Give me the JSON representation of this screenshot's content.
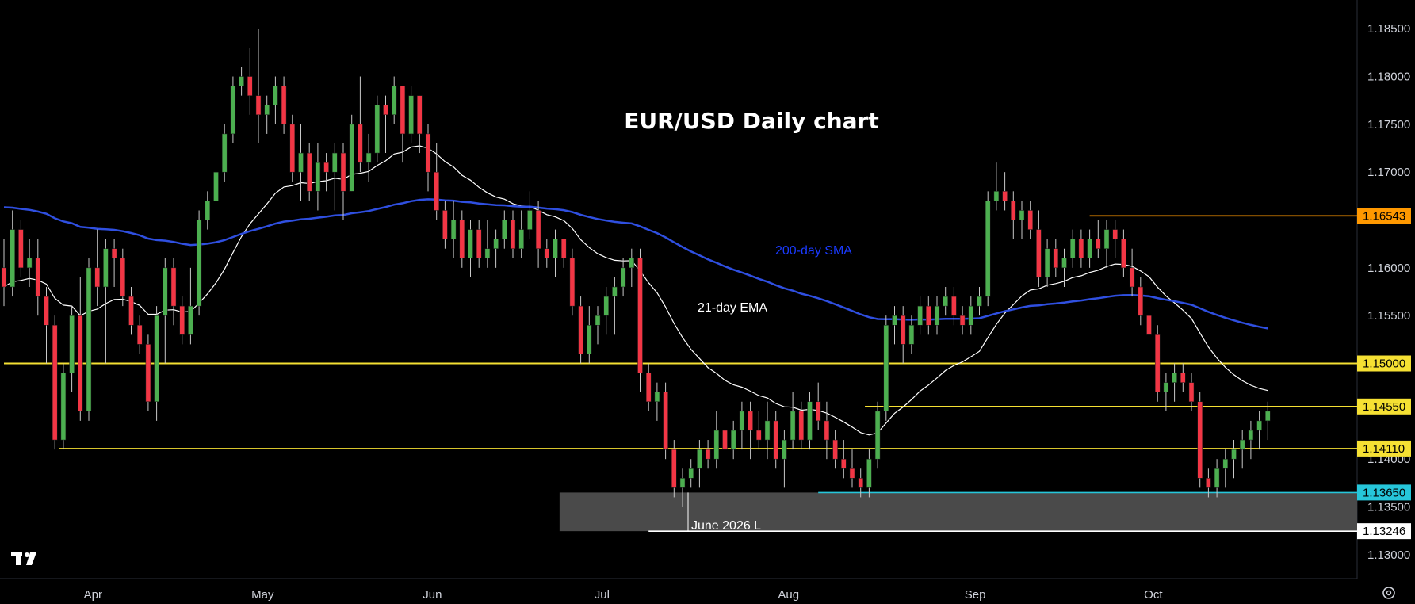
{
  "chart_data": {
    "type": "candlestick",
    "title": "EUR/USD Daily chart",
    "ylim": [
      1.1275,
      1.188
    ],
    "y_ticks": [
      "1.18500",
      "1.18000",
      "1.17500",
      "1.17000",
      "1.16000",
      "1.15500",
      "1.14000",
      "1.13500",
      "1.13000"
    ],
    "y_tick_values": [
      1.185,
      1.18,
      1.175,
      1.17,
      1.16,
      1.155,
      1.14,
      1.135,
      1.13
    ],
    "x_labels": [
      "Apr",
      "May",
      "Jun",
      "Jul",
      "Aug",
      "Sep",
      "Oct"
    ],
    "x_label_bar_index": [
      10.5,
      30.5,
      50.5,
      70.5,
      92.5,
      114.5,
      135.5
    ],
    "bar_count": 154,
    "up_color": "#4caf50",
    "down_color": "#f23645",
    "levels": [
      {
        "price": 1.15,
        "label": "1.15000",
        "color": "#f5e033",
        "badge_bg": "#f5e033",
        "start_bar": 0
      },
      {
        "price": 1.1455,
        "label": "1.14550",
        "color": "#f5e033",
        "badge_bg": "#f5e033",
        "start_bar": 101.5
      },
      {
        "price": 1.1411,
        "label": "1.14110",
        "color": "#f5e033",
        "badge_bg": "#f5e033",
        "start_bar": 6.5
      },
      {
        "price": 1.16543,
        "label": "1.16543",
        "color": "#ff9800",
        "badge_bg": "#ff9800",
        "start_bar": 128
      },
      {
        "price": 1.1365,
        "label": "1.13650",
        "color": "#26c6da",
        "badge_bg": "#26c6da",
        "start_bar": 96
      },
      {
        "price": 1.13246,
        "label": "1.13246",
        "color": "#ffffff",
        "badge_bg": "#ffffff",
        "start_bar": 76
      }
    ],
    "zone": {
      "from": 1.1365,
      "to": 1.13246,
      "start_bar": 65.5,
      "color": "#4a4a4a"
    },
    "annotations": {
      "sma": {
        "text": "200-day SMA",
        "color": "#1a3aff"
      },
      "ema": {
        "text": "21-day EMA",
        "color": "#ffffff"
      },
      "low": {
        "text": "June 2026 L",
        "color": "#ffffff"
      }
    },
    "series": [
      {
        "name": "EUR/USD",
        "ohlc": [
          [
            1.16,
            1.163,
            1.156,
            1.158
          ],
          [
            1.158,
            1.166,
            1.157,
            1.164
          ],
          [
            1.164,
            1.165,
            1.159,
            1.16
          ],
          [
            1.16,
            1.163,
            1.158,
            1.161
          ],
          [
            1.161,
            1.163,
            1.155,
            1.157
          ],
          [
            1.157,
            1.158,
            1.15,
            1.154
          ],
          [
            1.154,
            1.155,
            1.141,
            1.142
          ],
          [
            1.142,
            1.15,
            1.141,
            1.149
          ],
          [
            1.149,
            1.156,
            1.147,
            1.155
          ],
          [
            1.155,
            1.159,
            1.144,
            1.145
          ],
          [
            1.145,
            1.161,
            1.144,
            1.16
          ],
          [
            1.16,
            1.164,
            1.156,
            1.158
          ],
          [
            1.158,
            1.163,
            1.15,
            1.162
          ],
          [
            1.162,
            1.163,
            1.158,
            1.161
          ],
          [
            1.161,
            1.162,
            1.156,
            1.157
          ],
          [
            1.157,
            1.158,
            1.153,
            1.154
          ],
          [
            1.154,
            1.155,
            1.151,
            1.152
          ],
          [
            1.152,
            1.153,
            1.145,
            1.146
          ],
          [
            1.146,
            1.156,
            1.144,
            1.155
          ],
          [
            1.155,
            1.161,
            1.15,
            1.16
          ],
          [
            1.16,
            1.161,
            1.154,
            1.156
          ],
          [
            1.156,
            1.157,
            1.152,
            1.153
          ],
          [
            1.153,
            1.16,
            1.152,
            1.156
          ],
          [
            1.156,
            1.166,
            1.155,
            1.165
          ],
          [
            1.165,
            1.168,
            1.164,
            1.167
          ],
          [
            1.167,
            1.171,
            1.166,
            1.17
          ],
          [
            1.17,
            1.175,
            1.169,
            1.174
          ],
          [
            1.174,
            1.18,
            1.173,
            1.179
          ],
          [
            1.179,
            1.181,
            1.178,
            1.18
          ],
          [
            1.18,
            1.183,
            1.176,
            1.178
          ],
          [
            1.178,
            1.185,
            1.173,
            1.176
          ],
          [
            1.176,
            1.178,
            1.174,
            1.177
          ],
          [
            1.177,
            1.18,
            1.175,
            1.179
          ],
          [
            1.179,
            1.18,
            1.174,
            1.175
          ],
          [
            1.175,
            1.176,
            1.169,
            1.17
          ],
          [
            1.17,
            1.175,
            1.167,
            1.172
          ],
          [
            1.172,
            1.173,
            1.167,
            1.168
          ],
          [
            1.168,
            1.173,
            1.166,
            1.171
          ],
          [
            1.171,
            1.172,
            1.168,
            1.17
          ],
          [
            1.17,
            1.173,
            1.166,
            1.172
          ],
          [
            1.172,
            1.173,
            1.165,
            1.168
          ],
          [
            1.168,
            1.176,
            1.168,
            1.175
          ],
          [
            1.175,
            1.18,
            1.17,
            1.171
          ],
          [
            1.171,
            1.174,
            1.169,
            1.172
          ],
          [
            1.172,
            1.178,
            1.171,
            1.177
          ],
          [
            1.177,
            1.178,
            1.172,
            1.176
          ],
          [
            1.176,
            1.18,
            1.175,
            1.179
          ],
          [
            1.179,
            1.179,
            1.171,
            1.174
          ],
          [
            1.174,
            1.179,
            1.173,
            1.178
          ],
          [
            1.178,
            1.178,
            1.172,
            1.174
          ],
          [
            1.174,
            1.175,
            1.168,
            1.17
          ],
          [
            1.17,
            1.173,
            1.165,
            1.166
          ],
          [
            1.166,
            1.167,
            1.162,
            1.163
          ],
          [
            1.163,
            1.167,
            1.161,
            1.165
          ],
          [
            1.165,
            1.166,
            1.16,
            1.161
          ],
          [
            1.161,
            1.165,
            1.159,
            1.164
          ],
          [
            1.164,
            1.165,
            1.16,
            1.161
          ],
          [
            1.161,
            1.165,
            1.16,
            1.162
          ],
          [
            1.162,
            1.164,
            1.16,
            1.163
          ],
          [
            1.163,
            1.166,
            1.162,
            1.165
          ],
          [
            1.165,
            1.166,
            1.161,
            1.162
          ],
          [
            1.162,
            1.166,
            1.161,
            1.164
          ],
          [
            1.164,
            1.168,
            1.163,
            1.166
          ],
          [
            1.166,
            1.167,
            1.16,
            1.162
          ],
          [
            1.162,
            1.163,
            1.16,
            1.161
          ],
          [
            1.161,
            1.164,
            1.159,
            1.163
          ],
          [
            1.163,
            1.163,
            1.16,
            1.161
          ],
          [
            1.161,
            1.162,
            1.155,
            1.156
          ],
          [
            1.156,
            1.157,
            1.15,
            1.151
          ],
          [
            1.151,
            1.156,
            1.15,
            1.154
          ],
          [
            1.154,
            1.156,
            1.152,
            1.155
          ],
          [
            1.155,
            1.158,
            1.153,
            1.157
          ],
          [
            1.157,
            1.159,
            1.153,
            1.158
          ],
          [
            1.158,
            1.161,
            1.157,
            1.16
          ],
          [
            1.16,
            1.162,
            1.158,
            1.161
          ],
          [
            1.161,
            1.162,
            1.147,
            1.149
          ],
          [
            1.149,
            1.15,
            1.145,
            1.146
          ],
          [
            1.146,
            1.148,
            1.144,
            1.147
          ],
          [
            1.147,
            1.148,
            1.14,
            1.141
          ],
          [
            1.141,
            1.142,
            1.136,
            1.137
          ],
          [
            1.137,
            1.139,
            1.135,
            1.138
          ],
          [
            1.138,
            1.14,
            1.137,
            1.139
          ],
          [
            1.139,
            1.142,
            1.137,
            1.141
          ],
          [
            1.141,
            1.142,
            1.139,
            1.14
          ],
          [
            1.14,
            1.145,
            1.139,
            1.143
          ],
          [
            1.143,
            1.148,
            1.137,
            1.141
          ],
          [
            1.141,
            1.144,
            1.14,
            1.143
          ],
          [
            1.143,
            1.146,
            1.141,
            1.145
          ],
          [
            1.145,
            1.146,
            1.14,
            1.143
          ],
          [
            1.143,
            1.145,
            1.141,
            1.142
          ],
          [
            1.142,
            1.146,
            1.14,
            1.144
          ],
          [
            1.144,
            1.145,
            1.139,
            1.14
          ],
          [
            1.14,
            1.143,
            1.137,
            1.142
          ],
          [
            1.142,
            1.147,
            1.141,
            1.145
          ],
          [
            1.145,
            1.146,
            1.141,
            1.142
          ],
          [
            1.142,
            1.147,
            1.141,
            1.146
          ],
          [
            1.146,
            1.148,
            1.143,
            1.144
          ],
          [
            1.144,
            1.146,
            1.14,
            1.142
          ],
          [
            1.142,
            1.143,
            1.139,
            1.14
          ],
          [
            1.14,
            1.142,
            1.138,
            1.139
          ],
          [
            1.139,
            1.141,
            1.137,
            1.138
          ],
          [
            1.138,
            1.139,
            1.136,
            1.137
          ],
          [
            1.137,
            1.141,
            1.136,
            1.14
          ],
          [
            1.14,
            1.146,
            1.139,
            1.145
          ],
          [
            1.145,
            1.155,
            1.144,
            1.154
          ],
          [
            1.154,
            1.156,
            1.152,
            1.155
          ],
          [
            1.155,
            1.156,
            1.15,
            1.152
          ],
          [
            1.152,
            1.155,
            1.151,
            1.154
          ],
          [
            1.154,
            1.157,
            1.153,
            1.156
          ],
          [
            1.156,
            1.157,
            1.153,
            1.154
          ],
          [
            1.154,
            1.157,
            1.153,
            1.156
          ],
          [
            1.156,
            1.158,
            1.155,
            1.157
          ],
          [
            1.157,
            1.158,
            1.154,
            1.155
          ],
          [
            1.155,
            1.156,
            1.153,
            1.154
          ],
          [
            1.154,
            1.157,
            1.153,
            1.156
          ],
          [
            1.156,
            1.158,
            1.155,
            1.157
          ],
          [
            1.157,
            1.168,
            1.156,
            1.167
          ],
          [
            1.167,
            1.171,
            1.166,
            1.168
          ],
          [
            1.168,
            1.17,
            1.166,
            1.167
          ],
          [
            1.167,
            1.168,
            1.163,
            1.165
          ],
          [
            1.165,
            1.167,
            1.163,
            1.166
          ],
          [
            1.166,
            1.167,
            1.163,
            1.164
          ],
          [
            1.164,
            1.166,
            1.158,
            1.159
          ],
          [
            1.159,
            1.163,
            1.158,
            1.162
          ],
          [
            1.162,
            1.163,
            1.159,
            1.16
          ],
          [
            1.16,
            1.162,
            1.158,
            1.161
          ],
          [
            1.161,
            1.164,
            1.16,
            1.163
          ],
          [
            1.163,
            1.164,
            1.16,
            1.161
          ],
          [
            1.161,
            1.164,
            1.16,
            1.163
          ],
          [
            1.163,
            1.165,
            1.161,
            1.162
          ],
          [
            1.162,
            1.165,
            1.16,
            1.164
          ],
          [
            1.164,
            1.165,
            1.161,
            1.163
          ],
          [
            1.163,
            1.164,
            1.159,
            1.16
          ],
          [
            1.16,
            1.162,
            1.157,
            1.158
          ],
          [
            1.158,
            1.159,
            1.154,
            1.155
          ],
          [
            1.155,
            1.156,
            1.152,
            1.153
          ],
          [
            1.153,
            1.154,
            1.146,
            1.147
          ],
          [
            1.147,
            1.149,
            1.145,
            1.148
          ],
          [
            1.148,
            1.15,
            1.146,
            1.149
          ],
          [
            1.149,
            1.15,
            1.147,
            1.148
          ],
          [
            1.148,
            1.149,
            1.145,
            1.146
          ],
          [
            1.146,
            1.147,
            1.137,
            1.138
          ],
          [
            1.138,
            1.139,
            1.136,
            1.137
          ],
          [
            1.137,
            1.14,
            1.136,
            1.139
          ],
          [
            1.139,
            1.141,
            1.137,
            1.14
          ],
          [
            1.14,
            1.142,
            1.138,
            1.141
          ],
          [
            1.141,
            1.143,
            1.139,
            1.142
          ],
          [
            1.142,
            1.144,
            1.14,
            1.143
          ],
          [
            1.143,
            1.145,
            1.141,
            1.144
          ],
          [
            1.144,
            1.146,
            1.142,
            1.145
          ]
        ]
      }
    ]
  }
}
